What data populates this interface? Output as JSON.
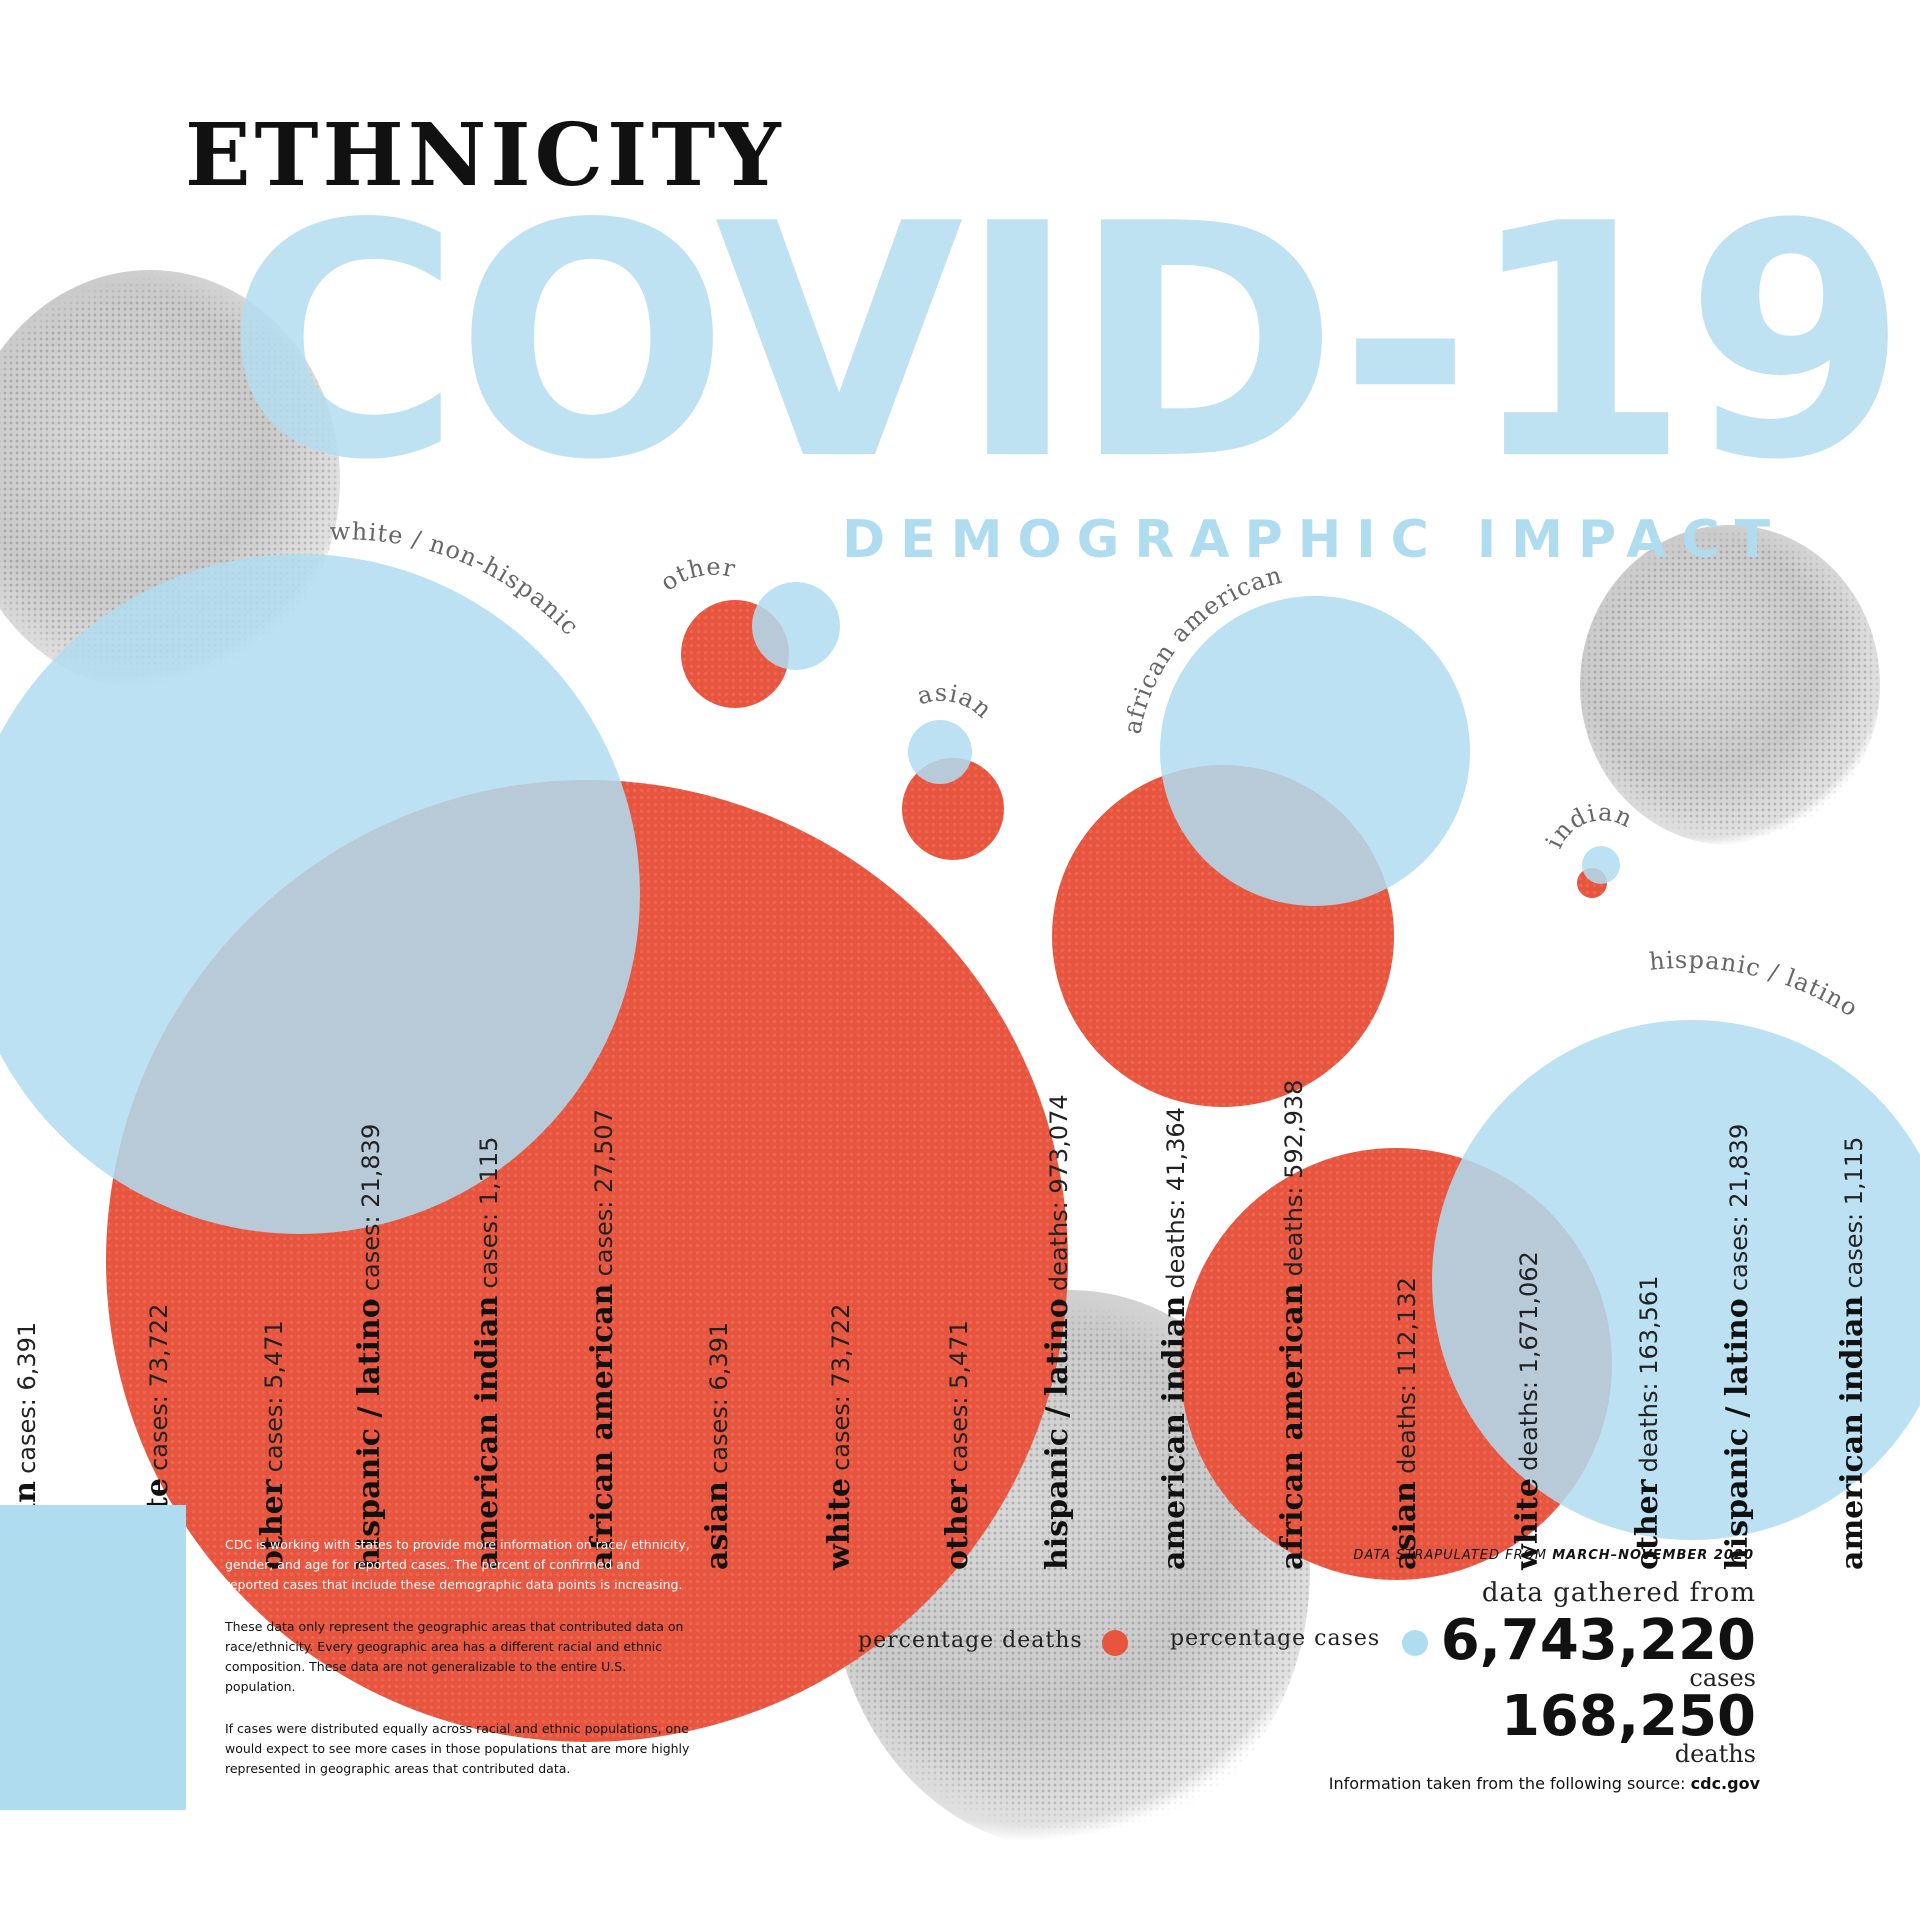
{
  "heading": "ETHNICITY",
  "covid_title": "COVID-19",
  "subtitle": "DEMOGRAPHIC IMPACT",
  "circle_labels": {
    "white": "white / non-hispanic",
    "other": "other",
    "asian": "asian",
    "african_american": "african american",
    "indian": "indian",
    "hispanic": "hispanic / latino"
  },
  "cases_columns": [
    {
      "name": "asian",
      "stat": "cases: 6,391"
    },
    {
      "name": "white",
      "stat": "cases: 73,722"
    },
    {
      "name": "other",
      "stat": "cases: 5,471"
    },
    {
      "name": "hispanic / latino",
      "stat": "cases: 21,839"
    },
    {
      "name": "american indian",
      "stat": "cases: 1,115"
    },
    {
      "name": "african american",
      "stat": "cases: 27,507"
    },
    {
      "name": "asian",
      "stat": "cases: 6,391"
    },
    {
      "name": "white",
      "stat": "cases: 73,722"
    },
    {
      "name": "other",
      "stat": "cases: 5,471"
    }
  ],
  "deaths_columns": [
    {
      "name": "hispanic / latino",
      "stat": "deaths: 973,074"
    },
    {
      "name": "american indian",
      "stat": "deaths: 41,364"
    },
    {
      "name": "african american",
      "stat": "deaths: 592,938"
    },
    {
      "name": "asian",
      "stat": "deaths: 112,132"
    },
    {
      "name": "white",
      "stat": "deaths: 1,671,062"
    },
    {
      "name": "other",
      "stat": "deaths: 163,561"
    },
    {
      "name": "hispanic / latino",
      "stat": "cases: 21,839"
    },
    {
      "name": "american indian",
      "stat": "cases: 1,115"
    }
  ],
  "notes": [
    "CDC is working with states to provide more information on race/ ethnicity, gender, and age for reported cases. The percent of confirmed and reported cases that include these demographic data points is increasing.",
    "These data only represent the geographic areas that contributed data on race/ethnicity. Every geographic area has a different racial and ethnic composition. These data are not generalizable to the entire U.S. population.",
    "If cases were distributed equally across racial and ethnic populations, one would expect to see more cases in those populations that are more highly represented in geographic areas that contributed data."
  ],
  "legend": {
    "deaths_label": "percentage deaths",
    "cases_label": "percentage cases",
    "deaths_color": "#e8553f",
    "cases_color": "#b0dcf0"
  },
  "summary": {
    "date_prefix": "DATA STRAPULATED FROM",
    "date_range": "MARCH–NOVEMBER 2020",
    "gathered_label": "data gathered from",
    "total_cases": "6,743,220",
    "cases_word": "cases",
    "total_deaths": "168,250",
    "deaths_word": "deaths",
    "source_prefix": "Information taken from the following source:",
    "source": "cdc.gov"
  },
  "colors": {
    "red": "#e8553f",
    "blue": "#b0dcf0",
    "covid_blue": "#b5def2",
    "virus_gray": "#b9b9b9"
  }
}
